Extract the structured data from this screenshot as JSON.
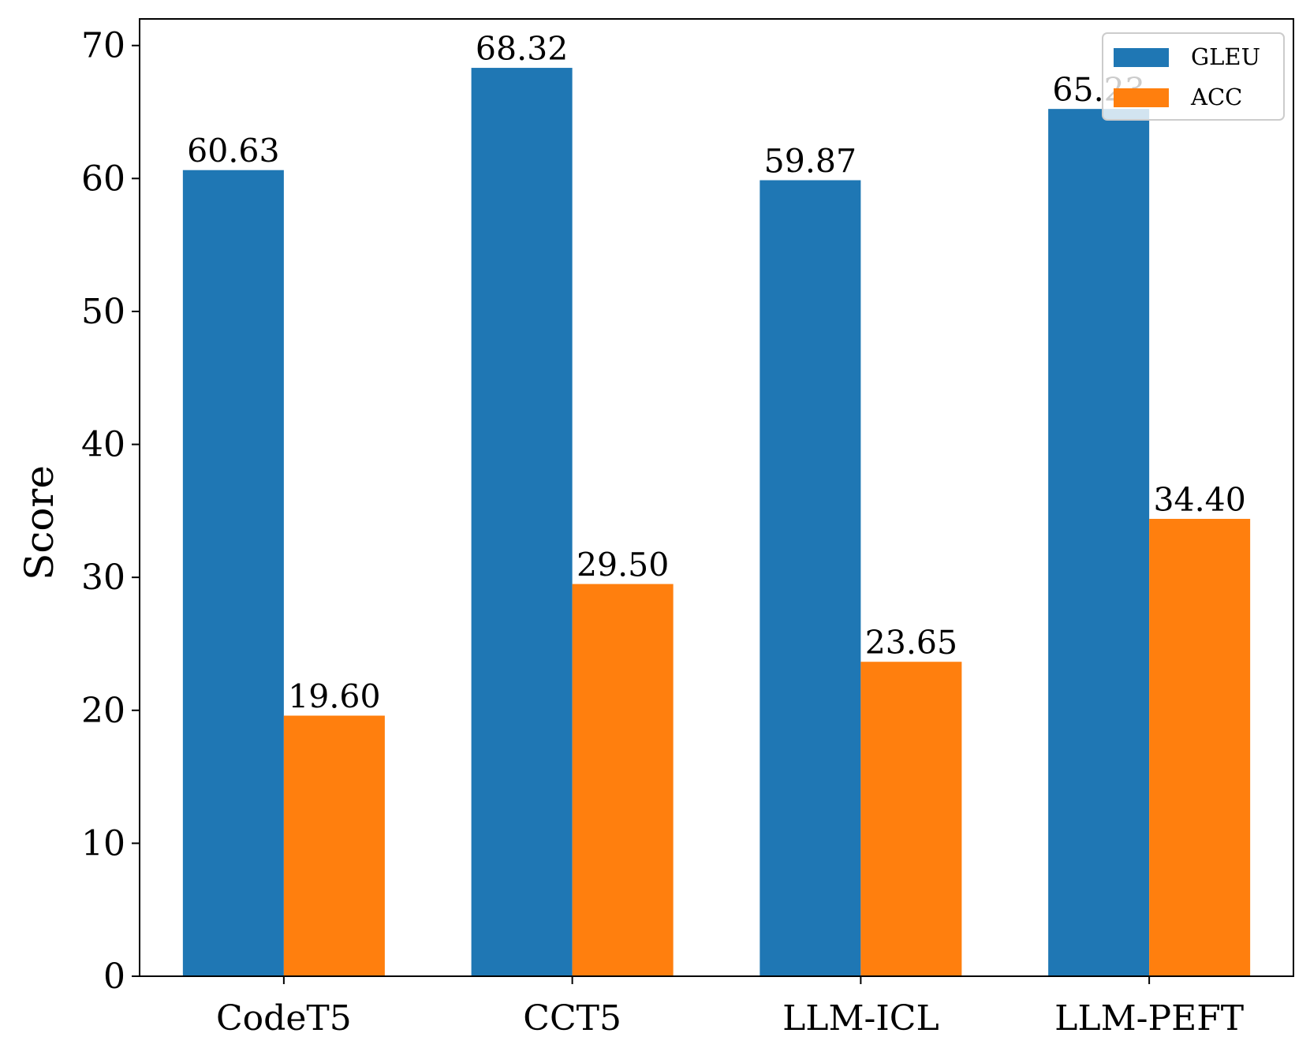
{
  "chart_data": {
    "type": "bar",
    "categories": [
      "CodeT5",
      "CCT5",
      "LLM-ICL",
      "LLM-PEFT"
    ],
    "series": [
      {
        "name": "GLEU",
        "values": [
          60.63,
          68.32,
          59.87,
          65.23
        ],
        "labels": [
          "60.63",
          "68.32",
          "59.87",
          "65.23"
        ],
        "color": "#1f77b4"
      },
      {
        "name": "ACC",
        "values": [
          19.6,
          29.5,
          23.65,
          34.4
        ],
        "labels": [
          "19.60",
          "29.50",
          "23.65",
          "34.40"
        ],
        "color": "#ff7f0e"
      }
    ],
    "ylabel": "Score",
    "ylim": [
      0,
      72
    ],
    "yticks": [
      0,
      10,
      20,
      30,
      40,
      50,
      60,
      70
    ],
    "grid": false,
    "legend_position": "top-right"
  }
}
